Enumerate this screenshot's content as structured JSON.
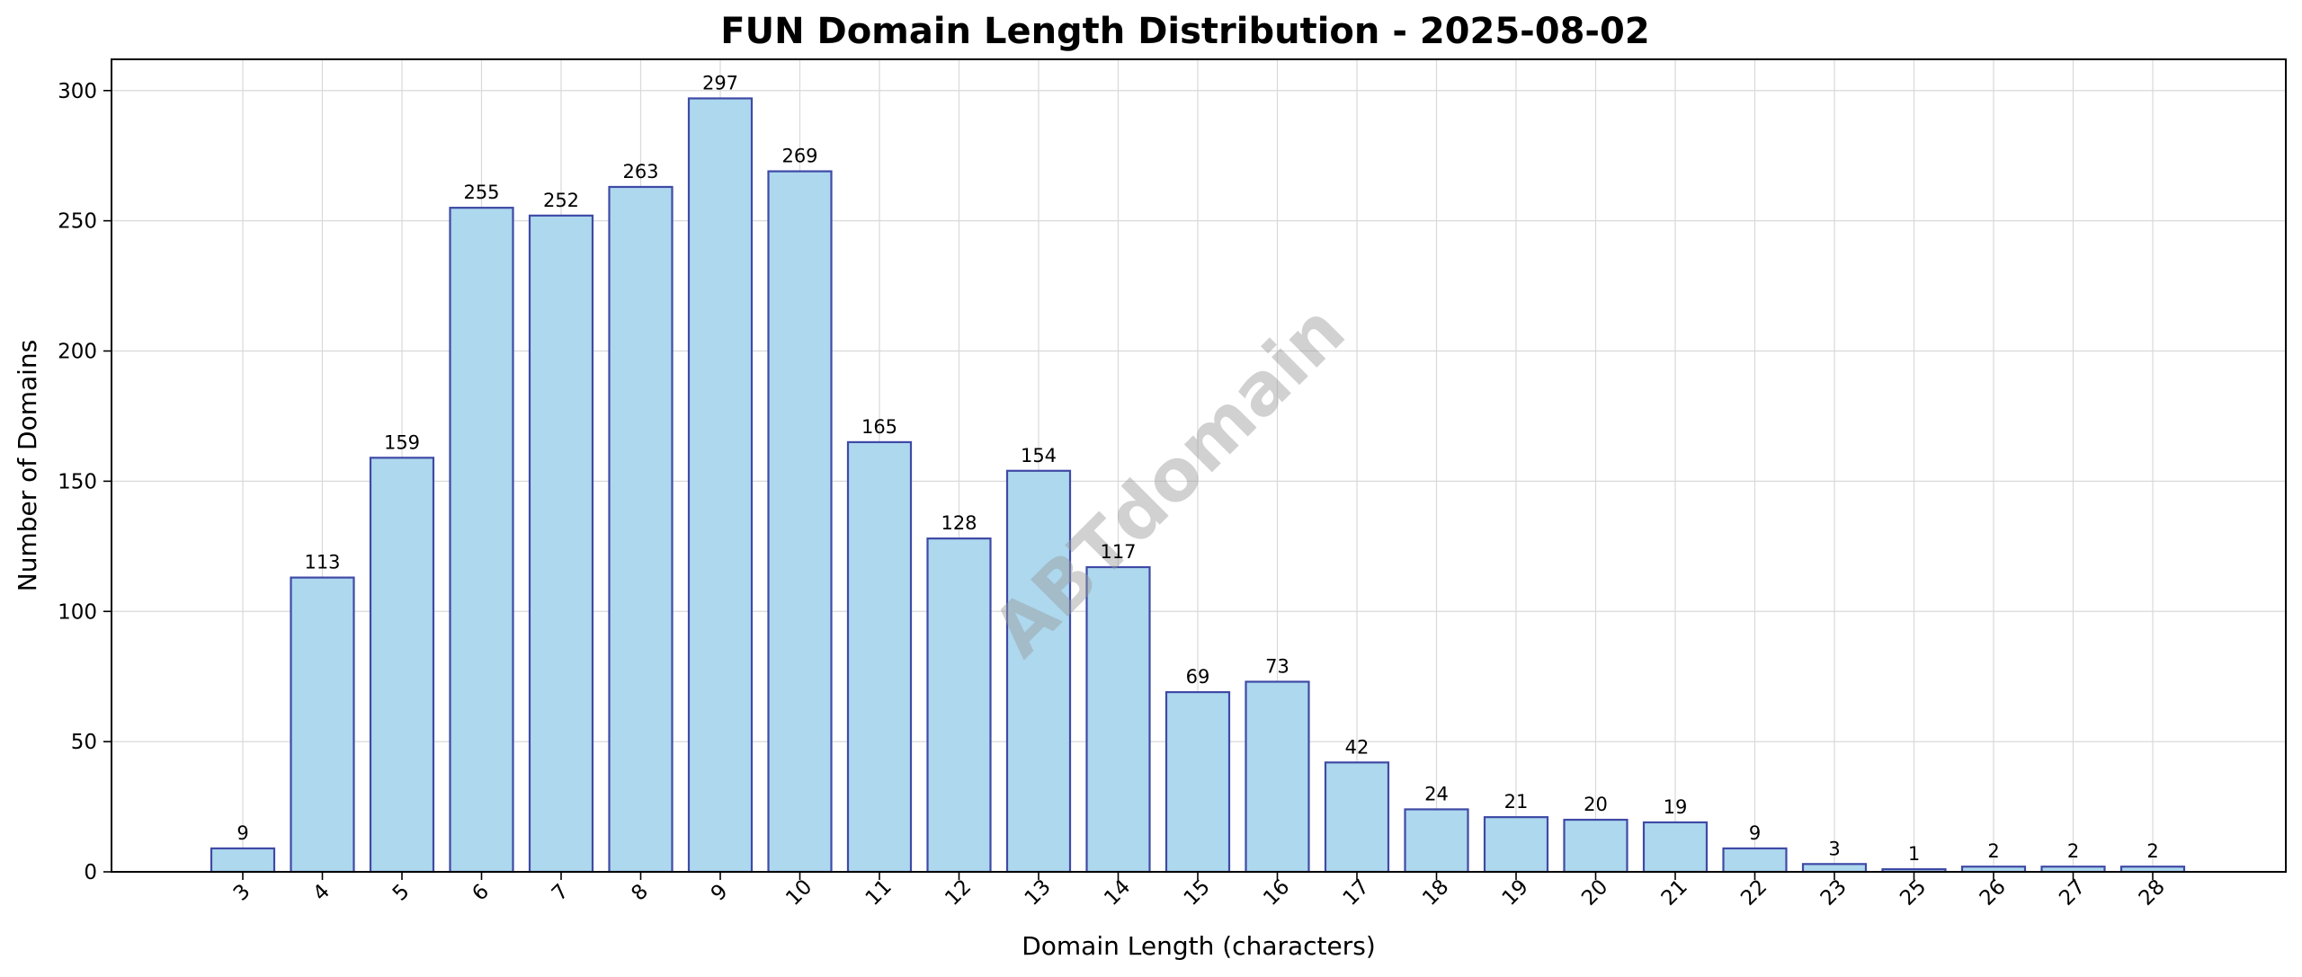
{
  "chart_data": {
    "type": "bar",
    "title": "FUN Domain Length Distribution - 2025-08-02",
    "xlabel": "Domain Length (characters)",
    "ylabel": "Number of Domains",
    "categories": [
      "3",
      "4",
      "5",
      "6",
      "7",
      "8",
      "9",
      "10",
      "11",
      "12",
      "13",
      "14",
      "15",
      "16",
      "17",
      "18",
      "19",
      "20",
      "21",
      "22",
      "23",
      "25",
      "26",
      "27",
      "28"
    ],
    "values": [
      9,
      113,
      159,
      255,
      252,
      263,
      297,
      269,
      165,
      128,
      154,
      117,
      69,
      73,
      42,
      24,
      21,
      20,
      19,
      9,
      3,
      1,
      2,
      2,
      2
    ],
    "ylim": [
      0,
      312
    ],
    "yticks": [
      0,
      50,
      100,
      150,
      200,
      250,
      300
    ],
    "grid": true,
    "bar_fill": "#add8ee",
    "bar_edge": "#3f4aa6",
    "watermark": "ABTdomain"
  }
}
